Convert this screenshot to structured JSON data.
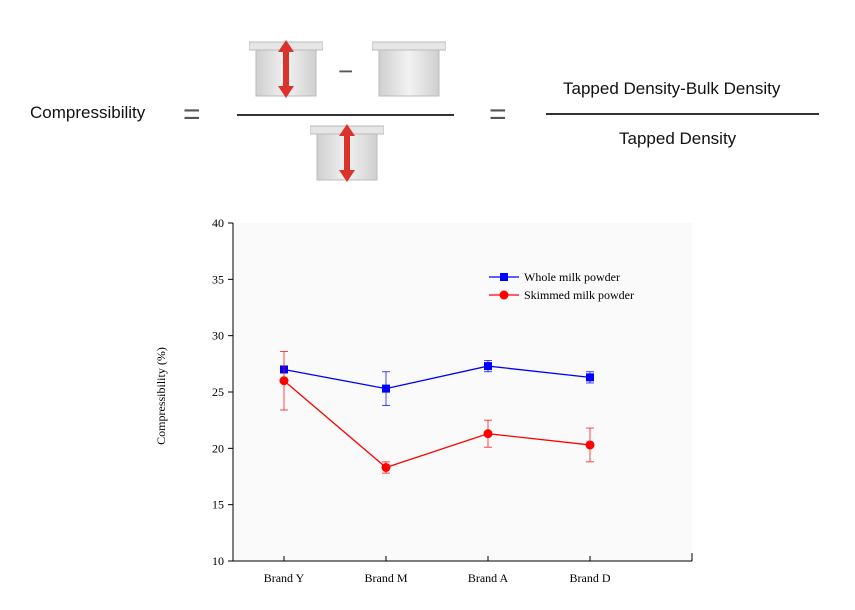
{
  "formula": {
    "lhs": "Compressibility",
    "eq1": "=",
    "minus": "−",
    "eq2": "=",
    "numerator": "Tapped Density-Bulk Density",
    "denominator": "Tapped Density"
  },
  "icons": {
    "tapped_cup": "tapped-cup-icon",
    "bulk_cup": "bulk-cup-icon",
    "arrow_color": "#d9332b"
  },
  "chart_data": {
    "type": "line",
    "categories": [
      "Brand Y",
      "Brand M",
      "Brand A",
      "Brand D"
    ],
    "ylabel": "Compressibility (%)",
    "xlabel": "",
    "ylim": [
      10,
      40
    ],
    "yticks": [
      10,
      15,
      20,
      25,
      30,
      35,
      40
    ],
    "legend_position": "top-right",
    "grid": false,
    "series": [
      {
        "name": "Whole milk powder",
        "color": "#0000ff",
        "marker": "square",
        "values": [
          27.0,
          25.3,
          27.3,
          26.3
        ],
        "errors": [
          0.3,
          1.5,
          0.5,
          0.5
        ]
      },
      {
        "name": "Skimmed milk powder",
        "color": "#ff0000",
        "marker": "circle",
        "values": [
          26.0,
          18.3,
          21.3,
          20.3
        ],
        "errors": [
          2.6,
          0.5,
          1.2,
          1.5
        ]
      }
    ]
  }
}
